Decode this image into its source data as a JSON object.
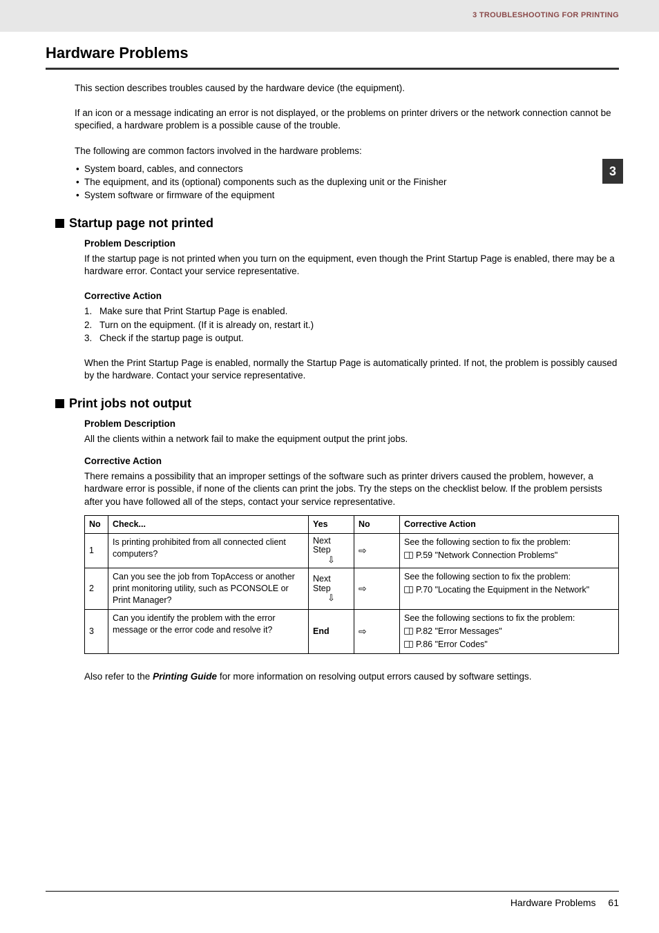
{
  "header": {
    "section_label": "3 TROUBLESHOOTING FOR PRINTING"
  },
  "side_tab": {
    "number": "3"
  },
  "title": "Hardware Problems",
  "intro": {
    "p1": "This section describes troubles caused by the hardware device (the equipment).",
    "p2": "If an icon or a message indicating an error is not displayed, or the problems on printer drivers or the network connection cannot be specified, a hardware problem is a possible cause of the trouble.",
    "p3": "The following are common factors involved in the hardware problems:",
    "bullets": [
      "System board, cables, and connectors",
      "The equipment, and its (optional) components such as the duplexing unit or the Finisher",
      "System software or firmware of the equipment"
    ]
  },
  "section1": {
    "title": "Startup page not printed",
    "pd_label": "Problem Description",
    "pd_text": "If the startup page is not printed when you turn on the equipment, even though the Print Startup Page is enabled, there may be a hardware error. Contact your service representative.",
    "ca_label": "Corrective Action",
    "steps": [
      "Make sure that Print Startup Page is enabled.",
      "Turn on the equipment. (If it is already on, restart it.)",
      "Check if the startup page is output."
    ],
    "followup": "When the Print Startup Page is enabled, normally the Startup Page is automatically printed. If not, the problem is possibly caused by the hardware. Contact your service representative."
  },
  "section2": {
    "title": "Print jobs not output",
    "pd_label": "Problem Description",
    "pd_text": "All the clients within a network fail to make the equipment output the print jobs.",
    "ca_label": "Corrective Action",
    "ca_text": "There remains a possibility that an improper settings of the software such as printer drivers caused the problem, however, a hardware error is possible, if none of the clients can print the jobs. Try the steps on the checklist below. If the problem persists after you have followed all of the steps, contact your service representative.",
    "table": {
      "headers": {
        "no": "No",
        "check": "Check...",
        "yes": "Yes",
        "nocol": "No",
        "corr": "Corrective Action"
      },
      "next_step_label": "Next Step",
      "end_label": "End",
      "rows": [
        {
          "no": "1",
          "check": "Is printing prohibited from all connected client computers?",
          "yes_type": "next",
          "corr_lead": "See the following section to fix the problem:",
          "refs": [
            "P.59 \"Network Connection Problems\""
          ]
        },
        {
          "no": "2",
          "check": "Can you see the job from TopAccess or another print monitoring utility, such as PCONSOLE or Print Manager?",
          "yes_type": "next",
          "corr_lead": "See the following section to fix the problem:",
          "refs": [
            "P.70 \"Locating the Equipment in the Network\""
          ]
        },
        {
          "no": "3",
          "check": "Can you identify the problem with the error message or the error code and resolve it?",
          "yes_type": "end",
          "corr_lead": "See the following sections to fix the problem:",
          "refs": [
            "P.82 \"Error Messages\"",
            "P.86 \"Error Codes\""
          ]
        }
      ]
    },
    "after_table_pre": "Also refer to the ",
    "after_table_bold": "Printing Guide",
    "after_table_post": " for more information on resolving output errors caused by software settings."
  },
  "footer": {
    "title": "Hardware Problems",
    "page": "61"
  }
}
